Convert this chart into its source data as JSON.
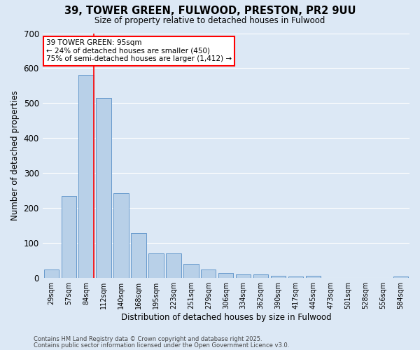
{
  "title": "39, TOWER GREEN, FULWOOD, PRESTON, PR2 9UU",
  "subtitle": "Size of property relative to detached houses in Fulwood",
  "xlabel": "Distribution of detached houses by size in Fulwood",
  "ylabel": "Number of detached properties",
  "categories": [
    "29sqm",
    "57sqm",
    "84sqm",
    "112sqm",
    "140sqm",
    "168sqm",
    "195sqm",
    "223sqm",
    "251sqm",
    "279sqm",
    "306sqm",
    "334sqm",
    "362sqm",
    "390sqm",
    "417sqm",
    "445sqm",
    "473sqm",
    "501sqm",
    "528sqm",
    "556sqm",
    "584sqm"
  ],
  "values": [
    25,
    235,
    580,
    515,
    242,
    128,
    70,
    70,
    40,
    25,
    15,
    10,
    10,
    7,
    5,
    7,
    0,
    0,
    0,
    0,
    5
  ],
  "bar_color": "#b8d0e8",
  "bar_edge_color": "#6699cc",
  "background_color": "#dce8f5",
  "grid_color": "#ffffff",
  "red_line_x": 2,
  "red_line_label": "39 TOWER GREEN: 95sqm",
  "annotation_line1": "← 24% of detached houses are smaller (450)",
  "annotation_line2": "75% of semi-detached houses are larger (1,412) →",
  "ylim": [
    0,
    700
  ],
  "yticks": [
    0,
    100,
    200,
    300,
    400,
    500,
    600,
    700
  ],
  "footer1": "Contains HM Land Registry data © Crown copyright and database right 2025.",
  "footer2": "Contains public sector information licensed under the Open Government Licence v3.0."
}
